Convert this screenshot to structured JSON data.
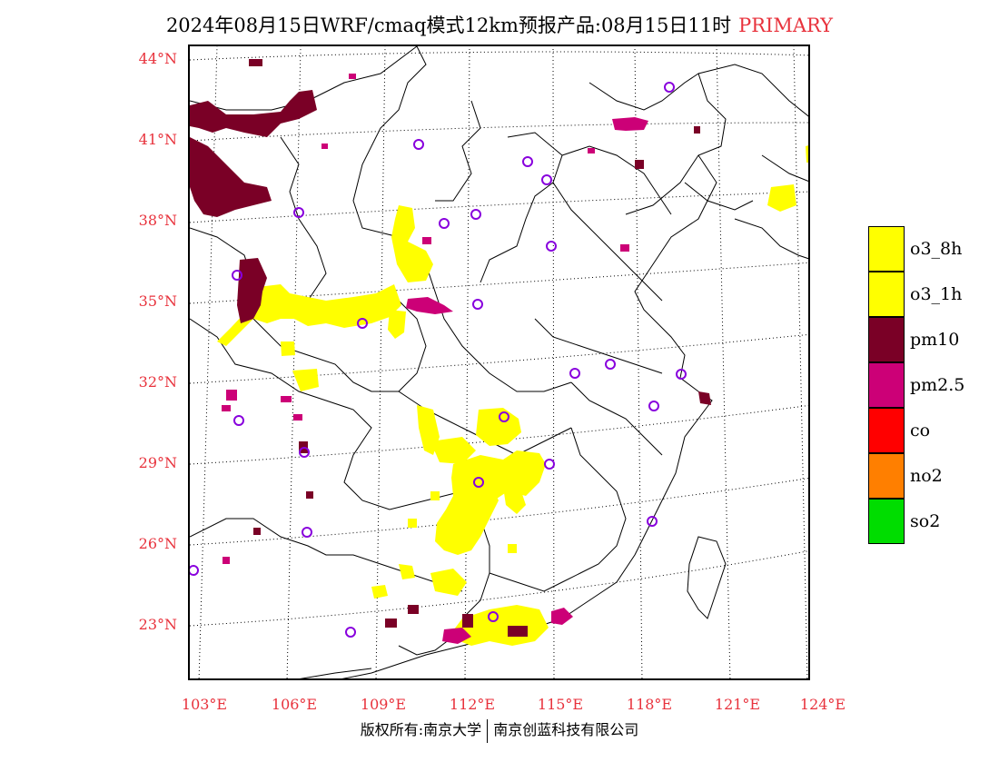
{
  "title": {
    "main": "2024年08月15日WRF/cmaq模式12km预报产品:08月15日11时",
    "tag": "PRIMARY"
  },
  "axes": {
    "latitude_labels": [
      "44°N",
      "41°N",
      "38°N",
      "35°N",
      "32°N",
      "29°N",
      "26°N",
      "23°N"
    ],
    "longitude_labels": [
      "103°E",
      "106°E",
      "109°E",
      "112°E",
      "115°E",
      "118°E",
      "121°E",
      "124°E"
    ]
  },
  "legend": [
    {
      "label": "o3_8h",
      "color": "#ffff00"
    },
    {
      "label": "o3_1h",
      "color": "#ffff00"
    },
    {
      "label": "pm10",
      "color": "#7a0026"
    },
    {
      "label": "pm2.5",
      "color": "#cc0077"
    },
    {
      "label": "co",
      "color": "#ff0000"
    },
    {
      "label": "no2",
      "color": "#ff7f00"
    },
    {
      "label": "so2",
      "color": "#00dd00"
    }
  ],
  "footer": {
    "left": "版权所有:南京大学",
    "right": "南京创蓝科技有限公司"
  },
  "colors": {
    "accent": "#e8323c",
    "o3": "#ffff00",
    "pm10": "#7a0026",
    "pm25": "#cc0077",
    "station": "#8800dd"
  }
}
